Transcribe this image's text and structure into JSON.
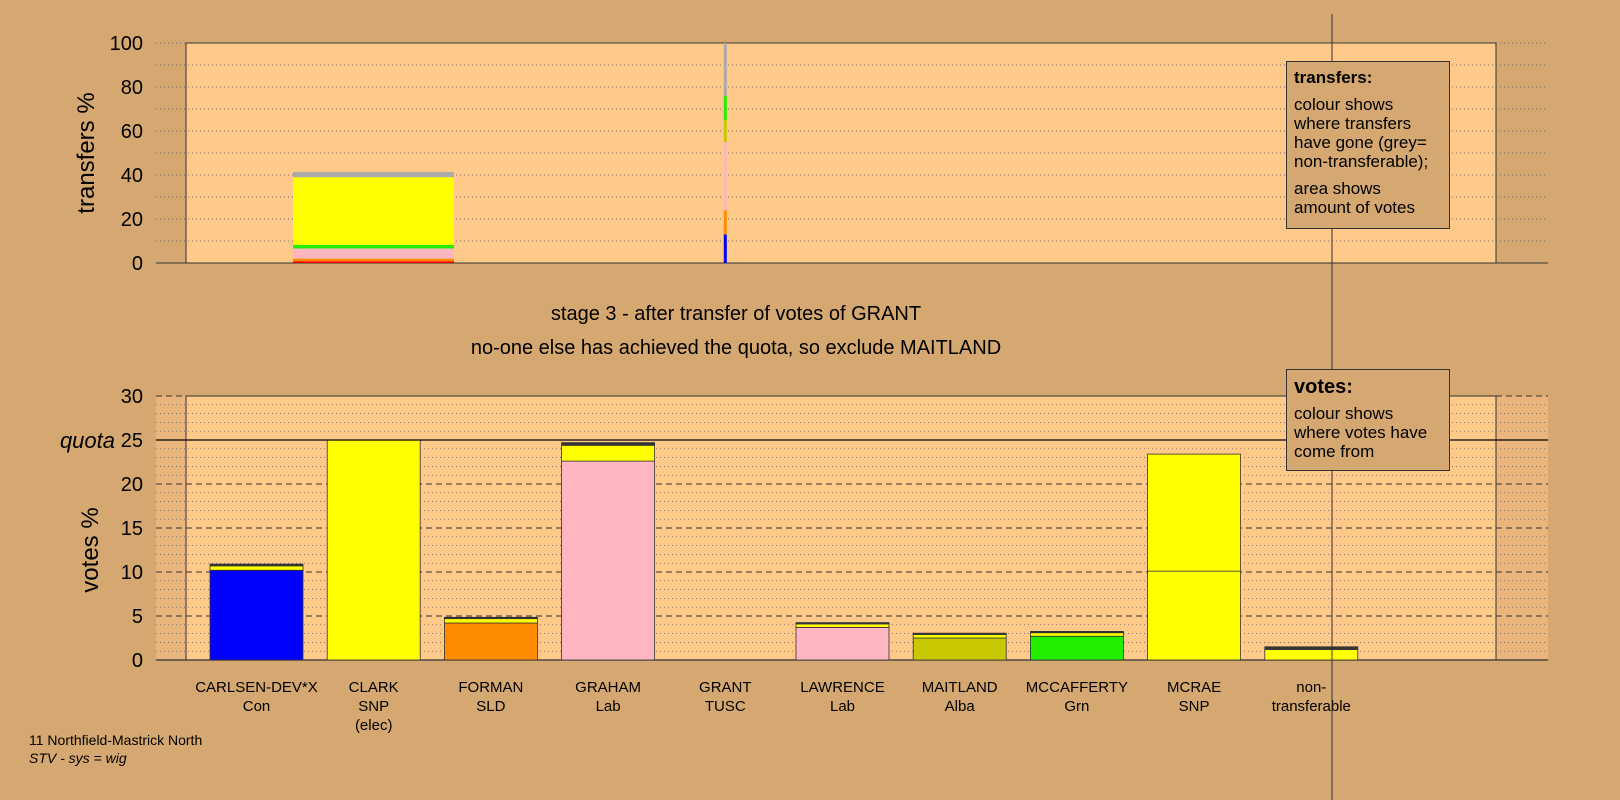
{
  "chart_data": [
    {
      "type": "bar",
      "ylabel": "transfers %",
      "ylim": [
        0,
        100
      ],
      "yticks": [
        "0",
        "20",
        "40",
        "60",
        "80",
        "100"
      ],
      "candidate_index": 4,
      "transfer_column": {
        "candidate": "GRANT",
        "segments": [
          {
            "to": "CARLSEN-DEV*X",
            "value": 13,
            "color": "#0000FF"
          },
          {
            "to": "FORMAN",
            "value": 11,
            "color": "#FF8C00"
          },
          {
            "to": "GRAHAM",
            "value": 15,
            "color": "#FFB6C1"
          },
          {
            "to": "LAWRENCE",
            "value": 16,
            "color": "#FFB6C1"
          },
          {
            "to": "MAITLAND",
            "value": 10,
            "color": "#C8C800"
          },
          {
            "to": "MCCAFFERTY",
            "value": 11,
            "color": "#22EE00"
          },
          {
            "to": "non-transferable",
            "value": 24,
            "color": "#AAAAAA"
          }
        ]
      },
      "transfer_bar": {
        "candidate": "CARLSEN-DEV*X",
        "segments": [
          {
            "value": 0.8,
            "color": "#FF0000"
          },
          {
            "value": 1.2,
            "color": "#FF8C00"
          },
          {
            "value": 4.6,
            "color": "#FFB6C1"
          },
          {
            "value": 1.6,
            "color": "#22EE00"
          },
          {
            "value": 30.8,
            "color": "#FFFF00"
          },
          {
            "value": 2.3,
            "color": "#AAAAAA"
          }
        ]
      }
    },
    {
      "type": "bar",
      "ylabel": "votes %",
      "ylim": [
        0,
        30
      ],
      "yticks": [
        "0",
        "5",
        "10",
        "15",
        "20",
        "25",
        "30"
      ],
      "quota": 25,
      "quota_label": "quota",
      "candidates": [
        {
          "name": "CARLSEN-DEV*X",
          "party": "Con",
          "note": "",
          "segments": [
            {
              "value": 10.2,
              "color": "#0000FF"
            },
            {
              "value": 0.5,
              "color": "#FFFF00"
            },
            {
              "value": 0.2,
              "color": "#333333"
            }
          ]
        },
        {
          "name": "CLARK",
          "party": "SNP",
          "note": "(elec)",
          "segments": [
            {
              "value": 25.0,
              "color": "#FFFF00"
            }
          ]
        },
        {
          "name": "FORMAN",
          "party": "SLD",
          "note": "",
          "segments": [
            {
              "value": 4.2,
              "color": "#FF8C00"
            },
            {
              "value": 0.5,
              "color": "#FFFF00"
            },
            {
              "value": 0.15,
              "color": "#333333"
            }
          ]
        },
        {
          "name": "GRAHAM",
          "party": "Lab",
          "note": "",
          "segments": [
            {
              "value": 22.6,
              "color": "#FFB6C1"
            },
            {
              "value": 1.8,
              "color": "#FFFF00"
            },
            {
              "value": 0.3,
              "color": "#333333"
            }
          ]
        },
        {
          "name": "GRANT",
          "party": "TUSC",
          "note": "",
          "segments": []
        },
        {
          "name": "LAWRENCE",
          "party": "Lab",
          "note": "",
          "segments": [
            {
              "value": 3.7,
              "color": "#FFB6C1"
            },
            {
              "value": 0.4,
              "color": "#FFFF00"
            },
            {
              "value": 0.15,
              "color": "#333333"
            }
          ]
        },
        {
          "name": "MAITLAND",
          "party": "Alba",
          "note": "",
          "segments": [
            {
              "value": 2.5,
              "color": "#C8C800"
            },
            {
              "value": 0.4,
              "color": "#FFFF00"
            },
            {
              "value": 0.15,
              "color": "#333333"
            }
          ]
        },
        {
          "name": "MCCAFFERTY",
          "party": "Grn",
          "note": "",
          "segments": [
            {
              "value": 2.7,
              "color": "#22EE00"
            },
            {
              "value": 0.4,
              "color": "#FFFF00"
            },
            {
              "value": 0.15,
              "color": "#333333"
            }
          ]
        },
        {
          "name": "MCRAE",
          "party": "SNP",
          "note": "",
          "segments": [
            {
              "value": 10.1,
              "color": "#FFFF00"
            },
            {
              "value": 13.3,
              "color": "#FFFF00"
            }
          ]
        },
        {
          "name": "non-",
          "party": "transferable",
          "note": "",
          "segments": [
            {
              "value": 1.2,
              "color": "#FFFF00"
            },
            {
              "value": 0.3,
              "color": "#333333"
            }
          ]
        }
      ]
    }
  ],
  "titles": {
    "line1": "stage 3 - after transfer of votes of GRANT",
    "line2": "no-one else has achieved the quota, so exclude MAITLAND"
  },
  "legend_transfers": {
    "title": "transfers:",
    "text1": "colour shows where transfers have gone (grey= non-transferable);",
    "text2": "area shows amount of votes"
  },
  "legend_votes": {
    "title": "votes:",
    "text1": "colour shows where votes have come from"
  },
  "footer": {
    "ward": "11 Northfield-Mastrick North",
    "system": "STV - sys = wig"
  },
  "colors": {
    "background": "#D4A870",
    "plot_area": "#FFC98A",
    "outer_strip": "#E9B57D"
  }
}
